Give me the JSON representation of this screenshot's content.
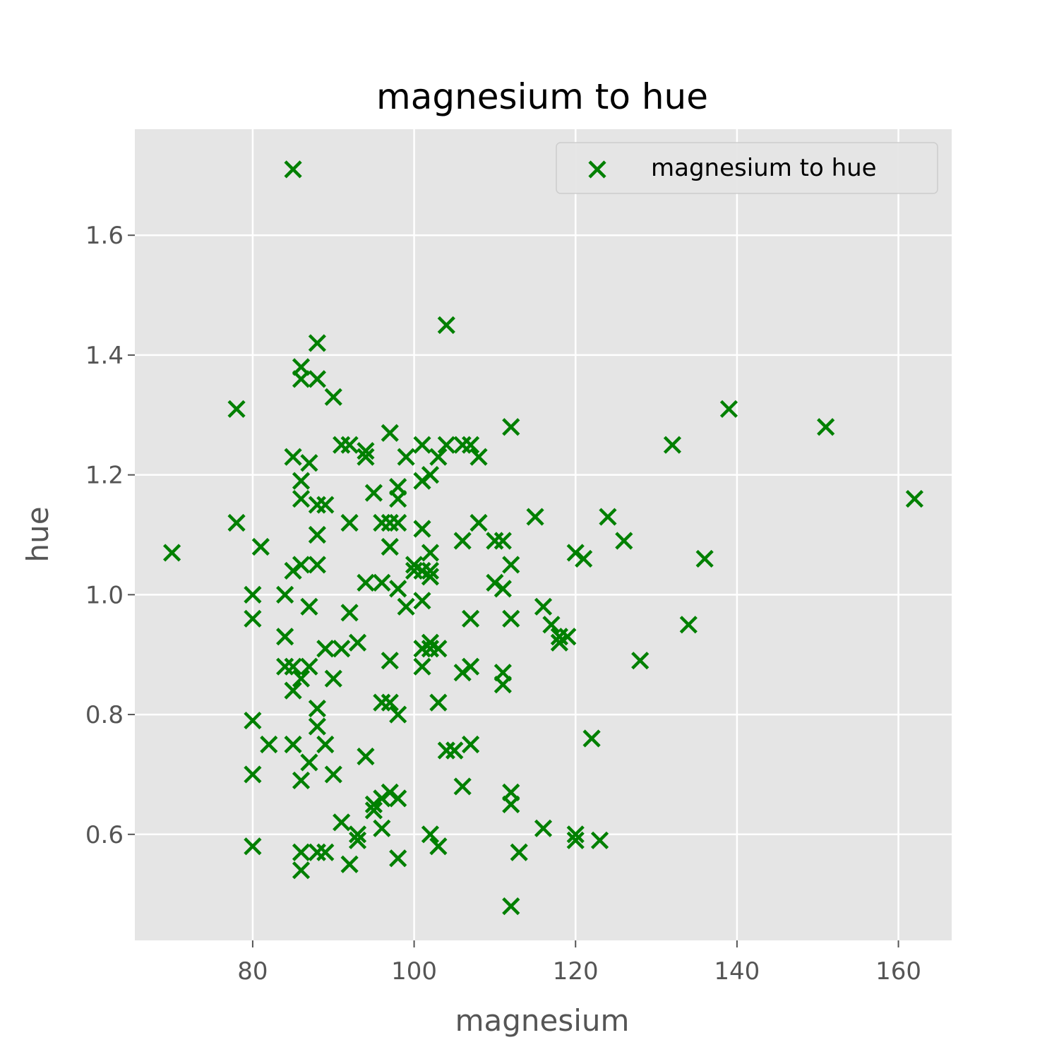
{
  "chart_data": {
    "type": "scatter",
    "title": "magnesium to hue",
    "xlabel": "magnesium",
    "ylabel": "hue",
    "xlim": [
      65.4,
      166.6
    ],
    "ylim": [
      0.423,
      1.777
    ],
    "xticks": [
      80,
      100,
      120,
      140,
      160
    ],
    "yticks": [
      0.6,
      0.8,
      1.0,
      1.2,
      1.4,
      1.6
    ],
    "xtick_labels": [
      "80",
      "100",
      "120",
      "140",
      "160"
    ],
    "ytick_labels": [
      "0.6",
      "0.8",
      "1.0",
      "1.2",
      "1.4",
      "1.6"
    ],
    "grid": true,
    "legend_position": "top-right",
    "marker": "x",
    "colors": {
      "marker": "#008000",
      "plot_bg": "#e5e5e5",
      "grid": "#ffffff"
    },
    "series": [
      {
        "name": "magnesium to hue",
        "x": [
          85,
          70,
          104,
          88,
          86,
          78,
          86,
          88,
          90,
          92,
          91,
          94,
          97,
          99,
          94,
          101,
          101,
          102,
          103,
          104,
          106,
          107,
          108,
          112,
          132,
          139,
          151,
          162,
          85,
          87,
          86,
          86,
          88,
          89,
          78,
          81,
          88,
          92,
          95,
          97,
          96,
          98,
          98,
          101,
          98,
          102,
          106,
          108,
          110,
          111,
          112,
          115,
          120,
          121,
          124,
          126,
          136,
          80,
          80,
          84,
          84,
          85,
          86,
          87,
          88,
          89,
          91,
          92,
          93,
          94,
          96,
          97,
          98,
          99,
          100,
          101,
          102,
          102,
          103,
          105,
          106,
          107,
          107,
          110,
          111,
          111,
          112,
          116,
          117,
          118,
          119,
          118,
          128,
          134,
          80,
          82,
          85,
          86,
          87,
          88,
          89,
          90,
          93,
          94,
          95,
          96,
          96,
          97,
          98,
          103,
          104,
          105,
          106,
          107,
          112,
          112,
          116,
          120,
          122,
          123,
          80,
          86,
          86,
          88,
          89,
          91,
          92,
          93,
          95,
          96,
          97,
          98,
          102,
          103,
          113,
          112,
          98,
          120,
          80,
          85,
          86,
          84,
          85,
          87,
          88,
          90,
          97,
          101,
          101,
          102,
          102,
          100,
          101,
          111
        ],
        "y": [
          1.71,
          1.07,
          1.45,
          1.42,
          1.38,
          1.31,
          1.36,
          1.36,
          1.33,
          1.25,
          1.25,
          1.24,
          1.27,
          1.23,
          1.23,
          1.25,
          1.19,
          1.2,
          1.23,
          1.25,
          1.25,
          1.25,
          1.23,
          1.28,
          1.25,
          1.31,
          1.28,
          1.16,
          1.23,
          1.22,
          1.19,
          1.16,
          1.15,
          1.15,
          1.12,
          1.08,
          1.1,
          1.12,
          1.17,
          1.12,
          1.12,
          1.18,
          1.12,
          1.11,
          1.16,
          1.04,
          1.09,
          1.12,
          1.09,
          1.01,
          1.05,
          1.13,
          1.07,
          1.06,
          1.13,
          1.09,
          1.06,
          1.0,
          0.96,
          1.0,
          0.93,
          1.04,
          1.05,
          0.98,
          1.05,
          0.91,
          0.91,
          0.97,
          0.92,
          1.02,
          1.02,
          1.08,
          1.01,
          0.98,
          1.04,
          0.99,
          1.03,
          1.07,
          0.91,
          0.74,
          0.87,
          0.88,
          0.96,
          1.02,
          0.85,
          0.87,
          0.96,
          0.98,
          0.95,
          0.93,
          0.93,
          0.92,
          0.89,
          0.95,
          0.79,
          0.75,
          0.75,
          0.69,
          0.72,
          0.78,
          0.75,
          0.7,
          0.6,
          0.73,
          0.64,
          0.61,
          0.66,
          0.67,
          0.66,
          0.58,
          0.74,
          0.74,
          0.68,
          0.75,
          0.67,
          0.65,
          0.61,
          0.6,
          0.76,
          0.59,
          0.58,
          0.57,
          0.54,
          0.57,
          0.57,
          0.62,
          0.55,
          0.59,
          0.65,
          0.82,
          0.82,
          0.8,
          0.6,
          0.82,
          0.57,
          0.48,
          0.56,
          0.59,
          0.7,
          0.84,
          0.86,
          0.88,
          0.88,
          0.88,
          0.81,
          0.86,
          0.89,
          0.91,
          0.88,
          0.91,
          0.92,
          1.05,
          1.04,
          1.09
        ]
      }
    ]
  }
}
